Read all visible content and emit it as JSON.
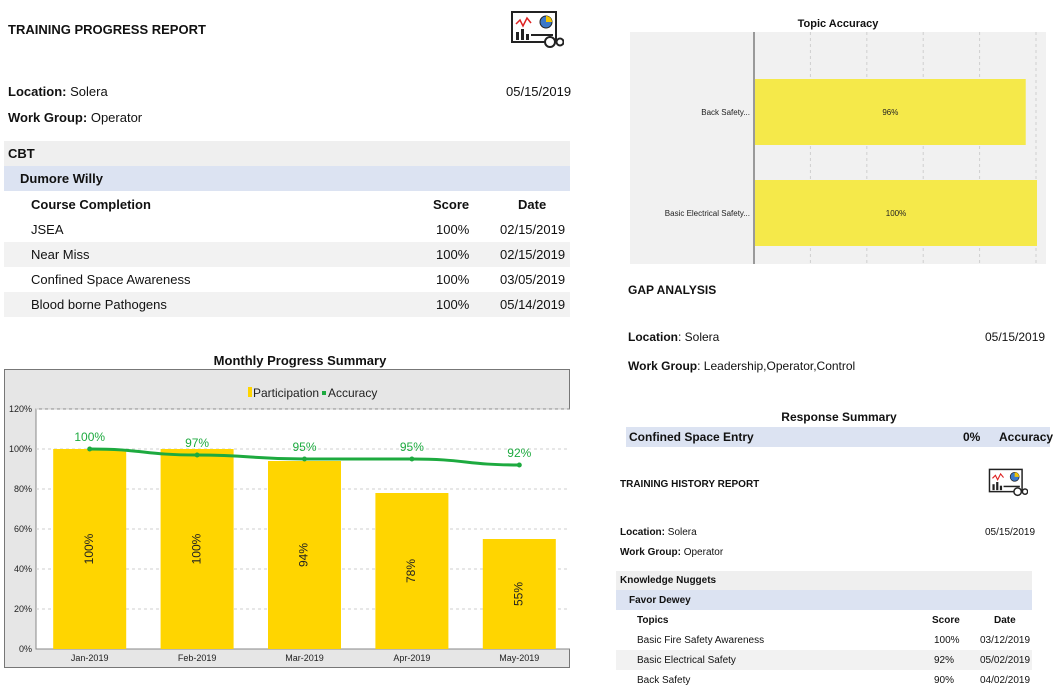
{
  "progress_report": {
    "title": "TRAINING PROGRESS REPORT",
    "icon": "report-dashboard-icon",
    "location_label": "Location:",
    "location_value": "Solera",
    "date": "05/15/2019",
    "workgroup_label": "Work Group:",
    "workgroup_value": "Operator",
    "section": "CBT",
    "person": "Dumore Willy",
    "headers": {
      "course": "Course Completion",
      "score": "Score",
      "date": "Date"
    },
    "rows": [
      {
        "course": "JSEA",
        "score": "100%",
        "date": "02/15/2019"
      },
      {
        "course": "Near Miss",
        "score": "100%",
        "date": "02/15/2019"
      },
      {
        "course": "Confined Space Awareness",
        "score": "100%",
        "date": "03/05/2019"
      },
      {
        "course": "Blood borne Pathogens",
        "score": "100%",
        "date": "05/14/2019"
      }
    ]
  },
  "monthly_chart": {
    "chart_data": {
      "type": "bar",
      "title": "Monthly Progress Summary",
      "categories": [
        "Jan-2019",
        "Feb-2019",
        "Mar-2019",
        "Apr-2019",
        "May-2019"
      ],
      "series": [
        {
          "name": "Participation",
          "values": [
            100,
            100,
            94,
            78,
            55
          ],
          "labels": [
            "100%",
            "100%",
            "94%",
            "78%",
            "55%"
          ],
          "color": "#FFD500"
        },
        {
          "name": "Accuracy",
          "values": [
            100,
            97,
            95,
            95,
            92
          ],
          "labels": [
            "100%",
            "97%",
            "95%",
            "95%",
            "92%"
          ],
          "color": "#1DAA3F"
        }
      ],
      "ylim": [
        0,
        120
      ],
      "yticks": [
        "0%",
        "20%",
        "40%",
        "60%",
        "80%",
        "100%",
        "120%"
      ],
      "legend": "top-center",
      "grid": true
    }
  },
  "topic_chart": {
    "chart_data": {
      "type": "bar",
      "orientation": "horizontal",
      "title": "Topic Accuracy",
      "categories": [
        "Back Safety...",
        "Basic Electrical Safety..."
      ],
      "values": [
        96,
        100
      ],
      "labels": [
        "96%",
        "100%"
      ],
      "xlim": [
        0,
        100
      ],
      "color": "#F5E94A",
      "grid": true
    }
  },
  "gap_analysis": {
    "title": "GAP ANALYSIS",
    "location_label": "Location",
    "location_value": ": Solera",
    "date": "05/15/2019",
    "workgroup_label": "Work Group",
    "workgroup_value": ": Leadership,Operator,Control",
    "response_title": "Response Summary",
    "response_row": {
      "name": "Confined Space Entry",
      "value": "0%",
      "metric": "Accuracy"
    }
  },
  "history_report": {
    "title": "TRAINING HISTORY REPORT",
    "icon": "report-dashboard-icon",
    "location_label": "Location:",
    "location_value": "Solera",
    "date": "05/15/2019",
    "workgroup_label": "Work Group:",
    "workgroup_value": "Operator",
    "section": "Knowledge Nuggets",
    "person": "Favor Dewey",
    "headers": {
      "topic": "Topics",
      "score": "Score",
      "date": "Date"
    },
    "rows": [
      {
        "topic": "Basic Fire Safety Awareness",
        "score": "100%",
        "date": "03/12/2019"
      },
      {
        "topic": "Basic Electrical Safety",
        "score": "92%",
        "date": "05/02/2019"
      },
      {
        "topic": "Back Safety",
        "score": "90%",
        "date": "04/02/2019"
      }
    ]
  }
}
